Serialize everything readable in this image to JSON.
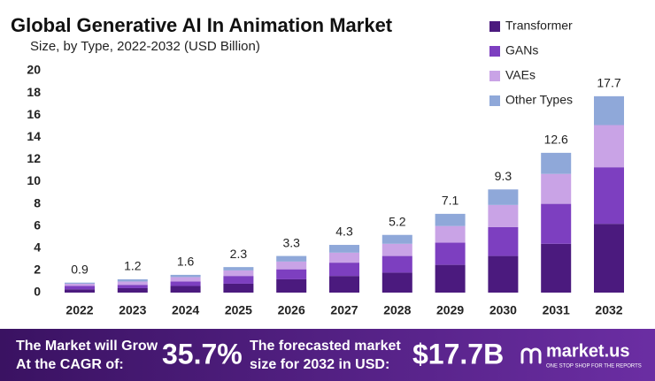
{
  "chart_data": {
    "type": "stacked_bar",
    "title": "Global Generative AI In Animation Market",
    "subtitle": "Size, by Type, 2022-2032 (USD Billion)",
    "categories": [
      "2022",
      "2023",
      "2024",
      "2025",
      "2026",
      "2027",
      "2028",
      "2029",
      "2030",
      "2031",
      "2032"
    ],
    "series": [
      {
        "name": "Transformer",
        "color": "#4b1a7e",
        "values": [
          0.3,
          0.4,
          0.6,
          0.8,
          1.2,
          1.5,
          1.8,
          2.5,
          3.3,
          4.4,
          6.2
        ]
      },
      {
        "name": "GANs",
        "color": "#7d3fc0",
        "values": [
          0.3,
          0.3,
          0.4,
          0.7,
          0.9,
          1.2,
          1.5,
          2.0,
          2.6,
          3.6,
          5.1
        ]
      },
      {
        "name": "VAEs",
        "color": "#c9a3e6",
        "values": [
          0.2,
          0.3,
          0.4,
          0.5,
          0.7,
          0.9,
          1.1,
          1.5,
          2.0,
          2.7,
          3.8
        ]
      },
      {
        "name": "Other Types",
        "color": "#8fa8d9",
        "values": [
          0.1,
          0.2,
          0.2,
          0.3,
          0.5,
          0.7,
          0.8,
          1.1,
          1.4,
          1.9,
          2.6
        ]
      }
    ],
    "totals": [
      0.9,
      1.2,
      1.6,
      2.3,
      3.3,
      4.3,
      5.2,
      7.1,
      9.3,
      12.6,
      17.7
    ],
    "ylim": [
      0,
      20
    ],
    "yticks": [
      0,
      2,
      4,
      6,
      8,
      10,
      12,
      14,
      16,
      18,
      20
    ],
    "grid": false,
    "legend": "top-right"
  },
  "banner": {
    "cagr_text": [
      "The Market will Grow",
      "At the CAGR of:"
    ],
    "cagr": "35.7%",
    "forecast_text": [
      "The forecasted market",
      "size for 2032 in USD:"
    ],
    "forecast": "$17.7B",
    "brand": "market.us",
    "tagline": "ONE STOP SHOP FOR THE REPORTS"
  }
}
